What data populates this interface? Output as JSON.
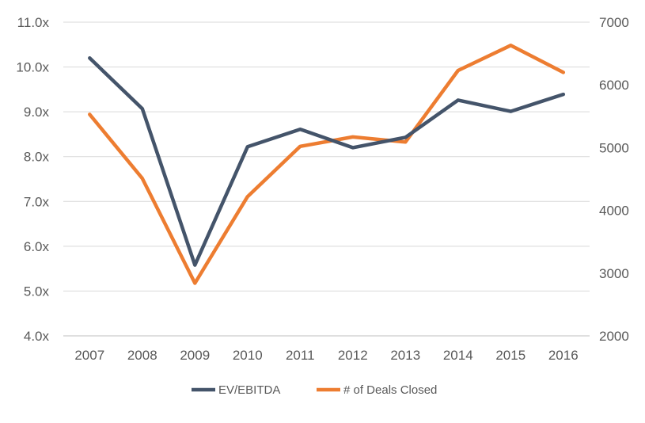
{
  "chart_data": {
    "type": "line",
    "categories": [
      "2007",
      "2008",
      "2009",
      "2010",
      "2011",
      "2012",
      "2013",
      "2014",
      "2015",
      "2016"
    ],
    "series": [
      {
        "name": "EV/EBITDA",
        "axis": "left",
        "color": "#44546a",
        "values": [
          10.2,
          9.07,
          5.58,
          8.22,
          8.61,
          8.2,
          8.43,
          9.26,
          9.01,
          9.39
        ]
      },
      {
        "name": "# of Deals Closed",
        "axis": "right",
        "color": "#ed7d31",
        "values": [
          5530,
          4510,
          2840,
          4220,
          5020,
          5170,
          5090,
          6230,
          6630,
          6200
        ]
      }
    ],
    "y_left": {
      "range": [
        4.0,
        11.0
      ],
      "ticks": [
        "4.0x",
        "5.0x",
        "6.0x",
        "7.0x",
        "8.0x",
        "9.0x",
        "10.0x",
        "11.0x"
      ]
    },
    "y_right": {
      "range": [
        2000,
        7000
      ],
      "ticks": [
        "2000",
        "3000",
        "4000",
        "5000",
        "6000",
        "7000"
      ]
    },
    "grid": true,
    "legend_position": "bottom"
  }
}
